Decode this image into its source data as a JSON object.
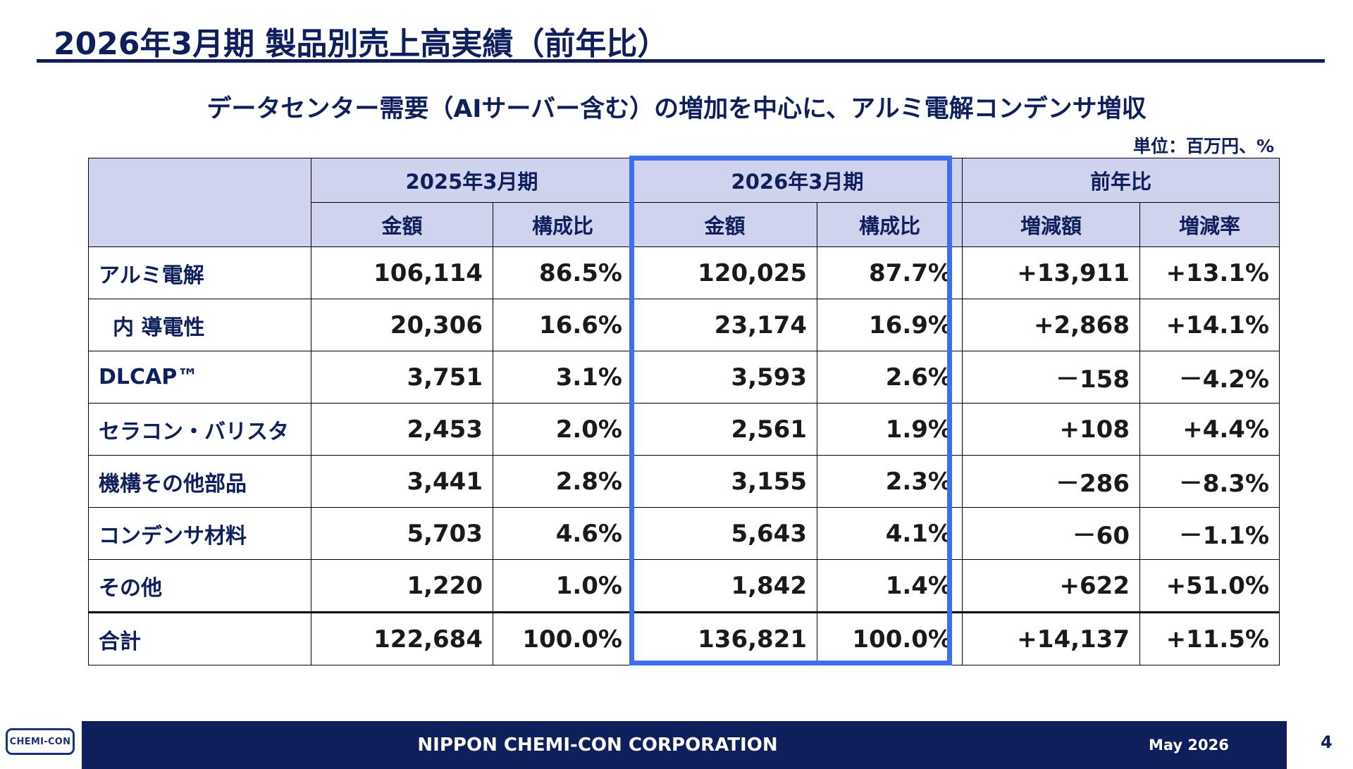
{
  "slide": {
    "title": "2026年3月期 製品別売上高実績（前年比）",
    "subtitle": "データセンター需要（AIサーバー含む）の増加を中心に、アルミ電解コンデンサ増収",
    "unit": "単位：百万円、%"
  },
  "table": {
    "period_headers": [
      "2025年3月期",
      "2026年3月期",
      "前年比"
    ],
    "sub_headers": [
      "金額",
      "構成比",
      "金額",
      "構成比",
      "増減額",
      "増減率"
    ],
    "rows": [
      {
        "label": "アルミ電解",
        "cells": [
          "106,114",
          "86.5%",
          "120,025",
          "87.7%",
          "+13,911",
          "+13.1%"
        ]
      },
      {
        "label": "内 導電性",
        "cells": [
          "20,306",
          "16.6%",
          "23,174",
          "16.9%",
          "+2,868",
          "+14.1%"
        ]
      },
      {
        "label": "DLCAP™",
        "cells": [
          "3,751",
          "3.1%",
          "3,593",
          "2.6%",
          "－158",
          "－4.2%"
        ]
      },
      {
        "label": "セラコン・バリスタ",
        "cells": [
          "2,453",
          "2.0%",
          "2,561",
          "1.9%",
          "+108",
          "+4.4%"
        ]
      },
      {
        "label": "機構その他部品",
        "cells": [
          "3,441",
          "2.8%",
          "3,155",
          "2.3%",
          "－286",
          "－8.3%"
        ]
      },
      {
        "label": "コンデンサ材料",
        "cells": [
          "5,703",
          "4.6%",
          "5,643",
          "4.1%",
          "－60",
          "－1.1%"
        ]
      },
      {
        "label": "その他",
        "cells": [
          "1,220",
          "1.0%",
          "1,842",
          "1.4%",
          "+622",
          "+51.0%"
        ]
      },
      {
        "label": "合計",
        "cells": [
          "122,684",
          "100.0%",
          "136,821",
          "100.0%",
          "+14,137",
          "+11.5%"
        ]
      }
    ]
  },
  "footer": {
    "logo_text": "CHEMI-CON",
    "company": "NIPPON CHEMI-CON CORPORATION",
    "date": "May 2026",
    "page": "4"
  },
  "colors": {
    "navy": "#0f1f5c",
    "header_fill": "#d0d3ee",
    "highlight_border": "#3d6ef0"
  }
}
